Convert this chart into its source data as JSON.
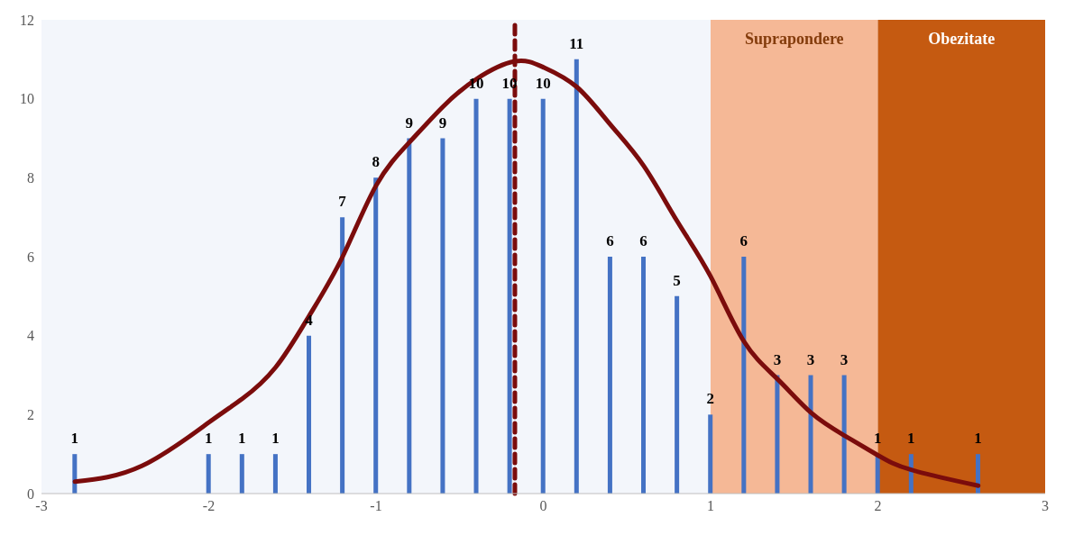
{
  "chart_data": {
    "type": "bar",
    "x": [
      -2.8,
      -2.0,
      -1.8,
      -1.6,
      -1.4,
      -1.2,
      -1.0,
      -0.8,
      -0.6,
      -0.4,
      -0.2,
      0,
      0.2,
      0.4,
      0.6,
      0.8,
      1.0,
      1.2,
      1.4,
      1.6,
      1.8,
      2.0,
      2.2,
      2.6
    ],
    "series": [
      {
        "color": "#4472c4",
        "values": [
          1,
          1,
          1,
          1,
          4,
          7,
          8,
          9,
          9,
          10,
          10,
          10,
          11,
          6,
          6,
          5,
          2,
          6,
          3,
          3,
          3,
          1,
          1,
          1
        ],
        "value_labels": [
          "1",
          "1",
          "1",
          "1",
          "4",
          "7",
          "8",
          "9",
          "9",
          "10",
          "10",
          "10",
          "11",
          "6",
          "6",
          "5",
          "2",
          "6",
          "3",
          "3",
          "3",
          "1",
          "1",
          "1"
        ]
      },
      {
        "type": "line",
        "color": "#7b0c0c",
        "x": [
          -2.8,
          -2.4,
          -2.0,
          -1.8,
          -1.6,
          -1.4,
          -1.2,
          -1.0,
          -0.8,
          -0.6,
          -0.4,
          -0.17,
          0,
          0.2,
          0.4,
          0.6,
          0.8,
          1.0,
          1.2,
          1.4,
          1.6,
          1.8,
          2.0,
          2.2,
          2.6
        ],
        "values": [
          0.3,
          0.7,
          1.8,
          2.4,
          3.2,
          4.5,
          6.0,
          7.8,
          8.9,
          9.8,
          10.5,
          10.95,
          10.8,
          10.3,
          9.35,
          8.3,
          6.9,
          5.5,
          3.85,
          2.9,
          2.05,
          1.47,
          0.97,
          0.6,
          0.2
        ]
      }
    ],
    "bands": [
      {
        "axis": "x",
        "from": 1,
        "to": 2,
        "label": "Suprapondere",
        "color": "#f5b896"
      },
      {
        "axis": "x",
        "from": 2,
        "to": 3,
        "label": "Obezitate",
        "color": "#c55a11"
      }
    ],
    "ref_lines": [
      {
        "axis": "x",
        "value": -0.17,
        "color": "#7b0c0c",
        "line_style": "dashed"
      }
    ],
    "xlim": [
      -3,
      3
    ],
    "xticks": [
      -3,
      -2,
      -1,
      0,
      1,
      2,
      3
    ],
    "ylim": [
      0,
      12
    ],
    "yticks": [
      0,
      2,
      4,
      6,
      8,
      10,
      12
    ],
    "grid": false,
    "legend": false,
    "marker": "none",
    "line_style": "solid"
  }
}
